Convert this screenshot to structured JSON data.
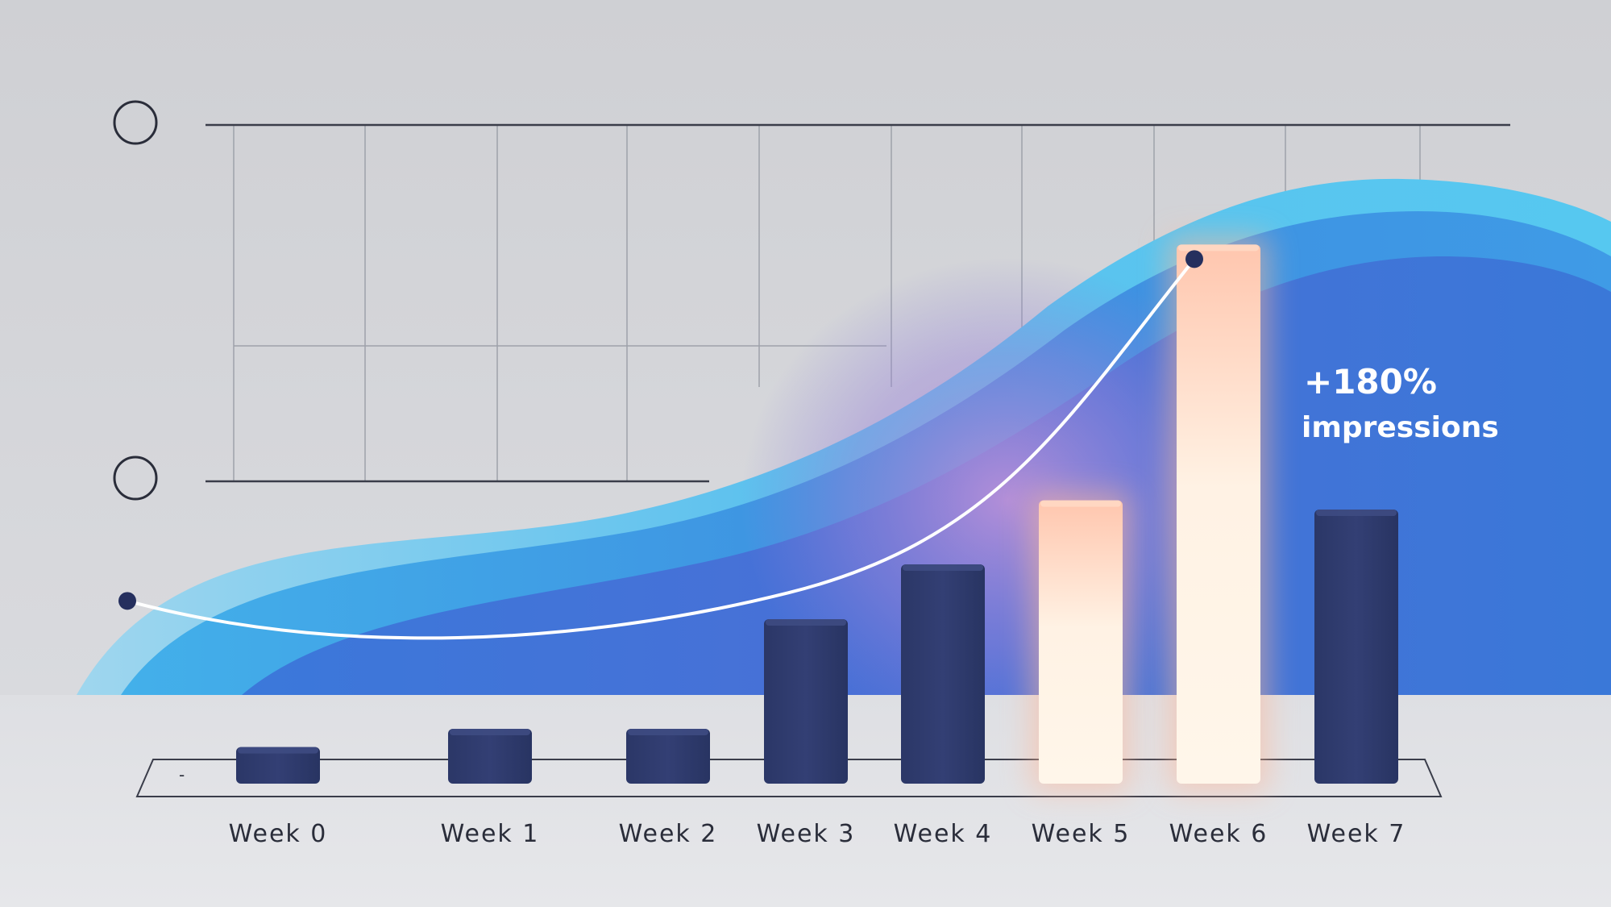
{
  "chart_data": {
    "type": "bar",
    "title": "",
    "xlabel": "",
    "ylabel": "",
    "categories": [
      "Week 0",
      "Week 1",
      "Week 2",
      "Week 3",
      "Week 4",
      "Week 5",
      "Week 6",
      "Week 7"
    ],
    "values": [
      4,
      6,
      6,
      18,
      24,
      31,
      59,
      30
    ],
    "highlighted": [
      "Week 5",
      "Week 6"
    ],
    "trend_line": {
      "x": [
        "Week 0",
        "Week 6"
      ],
      "start": 20,
      "end": 59
    },
    "ylim": [
      0,
      60
    ],
    "grid": true,
    "annotation": {
      "value": "+180%",
      "label": "impressions"
    }
  },
  "colors": {
    "bar": "#2d3a6c",
    "bar_highlight": "#ffe8d4",
    "wave_light": "#59c5ef",
    "wave_dark": "#3a6fd6",
    "glow": "#a888d8",
    "trend_line": "#ffffff",
    "marker": "#252f5e"
  }
}
